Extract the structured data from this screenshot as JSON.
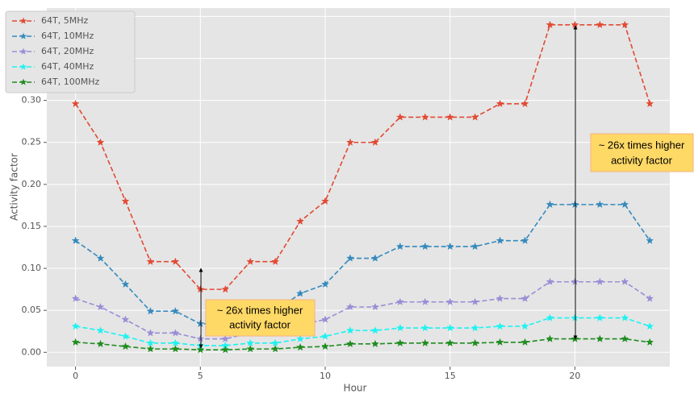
{
  "chart_data": {
    "type": "line",
    "x_label": "Hour",
    "y_label": "Activity factor",
    "x": [
      0,
      1,
      2,
      3,
      4,
      5,
      6,
      7,
      8,
      9,
      10,
      11,
      12,
      13,
      14,
      15,
      16,
      17,
      18,
      19,
      20,
      21,
      22,
      23
    ],
    "series": [
      {
        "name": "64T, 5MHz",
        "color": "#e24a33",
        "values": [
          0.296,
          0.25,
          0.18,
          0.108,
          0.108,
          0.075,
          0.075,
          0.108,
          0.108,
          0.156,
          0.18,
          0.25,
          0.25,
          0.28,
          0.28,
          0.28,
          0.28,
          0.296,
          0.296,
          0.39,
          0.39,
          0.39,
          0.39,
          0.296
        ]
      },
      {
        "name": "64T, 10MHz",
        "color": "#348abd",
        "values": [
          0.133,
          0.112,
          0.081,
          0.049,
          0.049,
          0.034,
          0.034,
          0.049,
          0.049,
          0.07,
          0.081,
          0.112,
          0.112,
          0.126,
          0.126,
          0.126,
          0.126,
          0.133,
          0.133,
          0.176,
          0.176,
          0.176,
          0.176,
          0.133
        ]
      },
      {
        "name": "64T, 20MHz",
        "color": "#988ed5",
        "values": [
          0.064,
          0.054,
          0.039,
          0.023,
          0.023,
          0.016,
          0.016,
          0.023,
          0.023,
          0.033,
          0.039,
          0.054,
          0.054,
          0.06,
          0.06,
          0.06,
          0.06,
          0.064,
          0.064,
          0.084,
          0.084,
          0.084,
          0.084,
          0.064
        ]
      },
      {
        "name": "64T, 40MHz",
        "color": "#1ef2f2",
        "values": [
          0.031,
          0.026,
          0.019,
          0.011,
          0.011,
          0.008,
          0.008,
          0.011,
          0.011,
          0.016,
          0.019,
          0.026,
          0.026,
          0.029,
          0.029,
          0.029,
          0.029,
          0.031,
          0.031,
          0.041,
          0.041,
          0.041,
          0.041,
          0.031
        ]
      },
      {
        "name": "64T, 100MHz",
        "color": "#1e8c1e",
        "values": [
          0.012,
          0.01,
          0.007,
          0.004,
          0.004,
          0.003,
          0.003,
          0.004,
          0.004,
          0.006,
          0.007,
          0.01,
          0.01,
          0.011,
          0.011,
          0.011,
          0.011,
          0.012,
          0.012,
          0.016,
          0.016,
          0.016,
          0.016,
          0.012
        ]
      }
    ],
    "xlim": [
      -1.15,
      23.8
    ],
    "xticks": [
      0,
      5,
      10,
      15,
      20
    ],
    "ylim": [
      -0.017,
      0.41
    ],
    "yticks": [
      {
        "value": 0,
        "label": "0.00"
      },
      {
        "value": 0.05,
        "label": "0.05"
      },
      {
        "value": 0.1,
        "label": "0.10"
      },
      {
        "value": 0.15,
        "label": "0.15"
      },
      {
        "value": 0.2,
        "label": "0.20"
      },
      {
        "value": 0.25,
        "label": "0.25"
      },
      {
        "value": 0.3,
        "label": "0.30"
      },
      {
        "value": 0.35,
        "label": "0.35"
      },
      {
        "value": 0.4,
        "label": "0.40"
      }
    ],
    "grid": true,
    "legend": "upper left",
    "annotations": [
      {
        "lines": [
          "~ 26x times higher",
          "activity factor"
        ]
      },
      {
        "lines": [
          "~ 26x times higher",
          "activity factor"
        ]
      }
    ]
  }
}
